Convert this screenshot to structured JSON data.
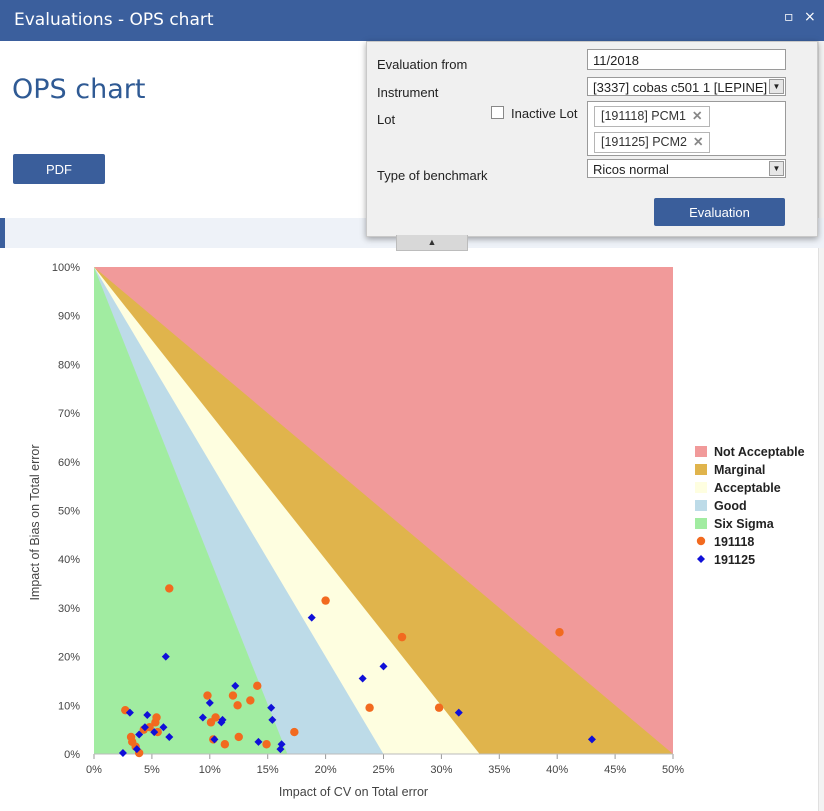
{
  "window": {
    "title": "Evaluations - OPS chart",
    "maximize_icon": "▫",
    "close_icon": "×"
  },
  "page": {
    "heading": "OPS chart",
    "pdf_label": "PDF"
  },
  "form": {
    "evaluation_from_label": "Evaluation from",
    "evaluation_from_value": "11/2018",
    "instrument_label": "Instrument",
    "instrument_value": "[3337] cobas c501 1 [LEPINE]",
    "lot_label": "Lot",
    "inactive_lot_label": "Inactive Lot",
    "lots": [
      "[191118] PCM1",
      "[191125] PCM2"
    ],
    "benchmark_label": "Type of benchmark",
    "benchmark_value": "Ricos normal",
    "evaluation_button": "Evaluation",
    "collapse_icon": "▲"
  },
  "chart_data": {
    "type": "scatter",
    "xlabel": "Impact of CV on Total error",
    "ylabel": "Impact of Bias on Total error",
    "xlim": [
      0,
      50
    ],
    "ylim": [
      0,
      100
    ],
    "x_ticks": [
      "0%",
      "5%",
      "10%",
      "15%",
      "20%",
      "25%",
      "30%",
      "35%",
      "40%",
      "45%",
      "50%"
    ],
    "y_ticks": [
      "0%",
      "10%",
      "20%",
      "30%",
      "40%",
      "50%",
      "60%",
      "70%",
      "80%",
      "90%",
      "100%"
    ],
    "legend_position": "right",
    "zones": [
      {
        "name": "Not Acceptable",
        "color": "#f19a9a"
      },
      {
        "name": "Marginal",
        "color": "#e0b44c"
      },
      {
        "name": "Acceptable",
        "color": "#fefee0"
      },
      {
        "name": "Good",
        "color": "#bddbe8"
      },
      {
        "name": "Six Sigma",
        "color": "#a1eca1"
      }
    ],
    "zone_x_intercepts": [
      50,
      33.3,
      25,
      16.7
    ],
    "series": [
      {
        "name": "191118",
        "marker": "circle",
        "color": "#f26a1f",
        "points": [
          [
            2.7,
            9
          ],
          [
            3.2,
            3.5
          ],
          [
            3.3,
            2.5
          ],
          [
            3.6,
            1.5
          ],
          [
            3.9,
            0.2
          ],
          [
            4.3,
            5
          ],
          [
            4.8,
            5.5
          ],
          [
            5.3,
            6.5
          ],
          [
            5.4,
            7.5
          ],
          [
            5.5,
            4.5
          ],
          [
            6.5,
            34
          ],
          [
            9.8,
            12
          ],
          [
            10.1,
            6.5
          ],
          [
            10.5,
            7.5
          ],
          [
            10.3,
            3
          ],
          [
            11.3,
            2
          ],
          [
            12,
            12
          ],
          [
            12.4,
            10
          ],
          [
            12.5,
            3.5
          ],
          [
            13.5,
            11
          ],
          [
            14.1,
            14
          ],
          [
            14.9,
            2
          ],
          [
            17.3,
            4.5
          ],
          [
            20,
            31.5
          ],
          [
            23.8,
            9.5
          ],
          [
            26.6,
            24
          ],
          [
            29.8,
            9.5
          ],
          [
            40.2,
            25
          ]
        ]
      },
      {
        "name": "191125",
        "marker": "diamond",
        "color": "#1010d8",
        "points": [
          [
            2.5,
            0.2
          ],
          [
            3.1,
            8.5
          ],
          [
            3.7,
            1
          ],
          [
            3.9,
            4
          ],
          [
            4.4,
            5.5
          ],
          [
            4.6,
            8
          ],
          [
            5.2,
            4.5
          ],
          [
            6,
            5.5
          ],
          [
            6.2,
            20
          ],
          [
            6.5,
            3.5
          ],
          [
            9.4,
            7.5
          ],
          [
            10,
            10.5
          ],
          [
            10.4,
            3
          ],
          [
            11,
            6.5
          ],
          [
            11.1,
            7
          ],
          [
            12.2,
            14
          ],
          [
            14.2,
            2.5
          ],
          [
            15.3,
            9.5
          ],
          [
            15.4,
            7
          ],
          [
            16.1,
            1
          ],
          [
            16.2,
            2
          ],
          [
            18.8,
            28
          ],
          [
            23.2,
            15.5
          ],
          [
            25,
            18
          ],
          [
            31.5,
            8.5
          ],
          [
            43,
            3
          ]
        ]
      }
    ]
  }
}
